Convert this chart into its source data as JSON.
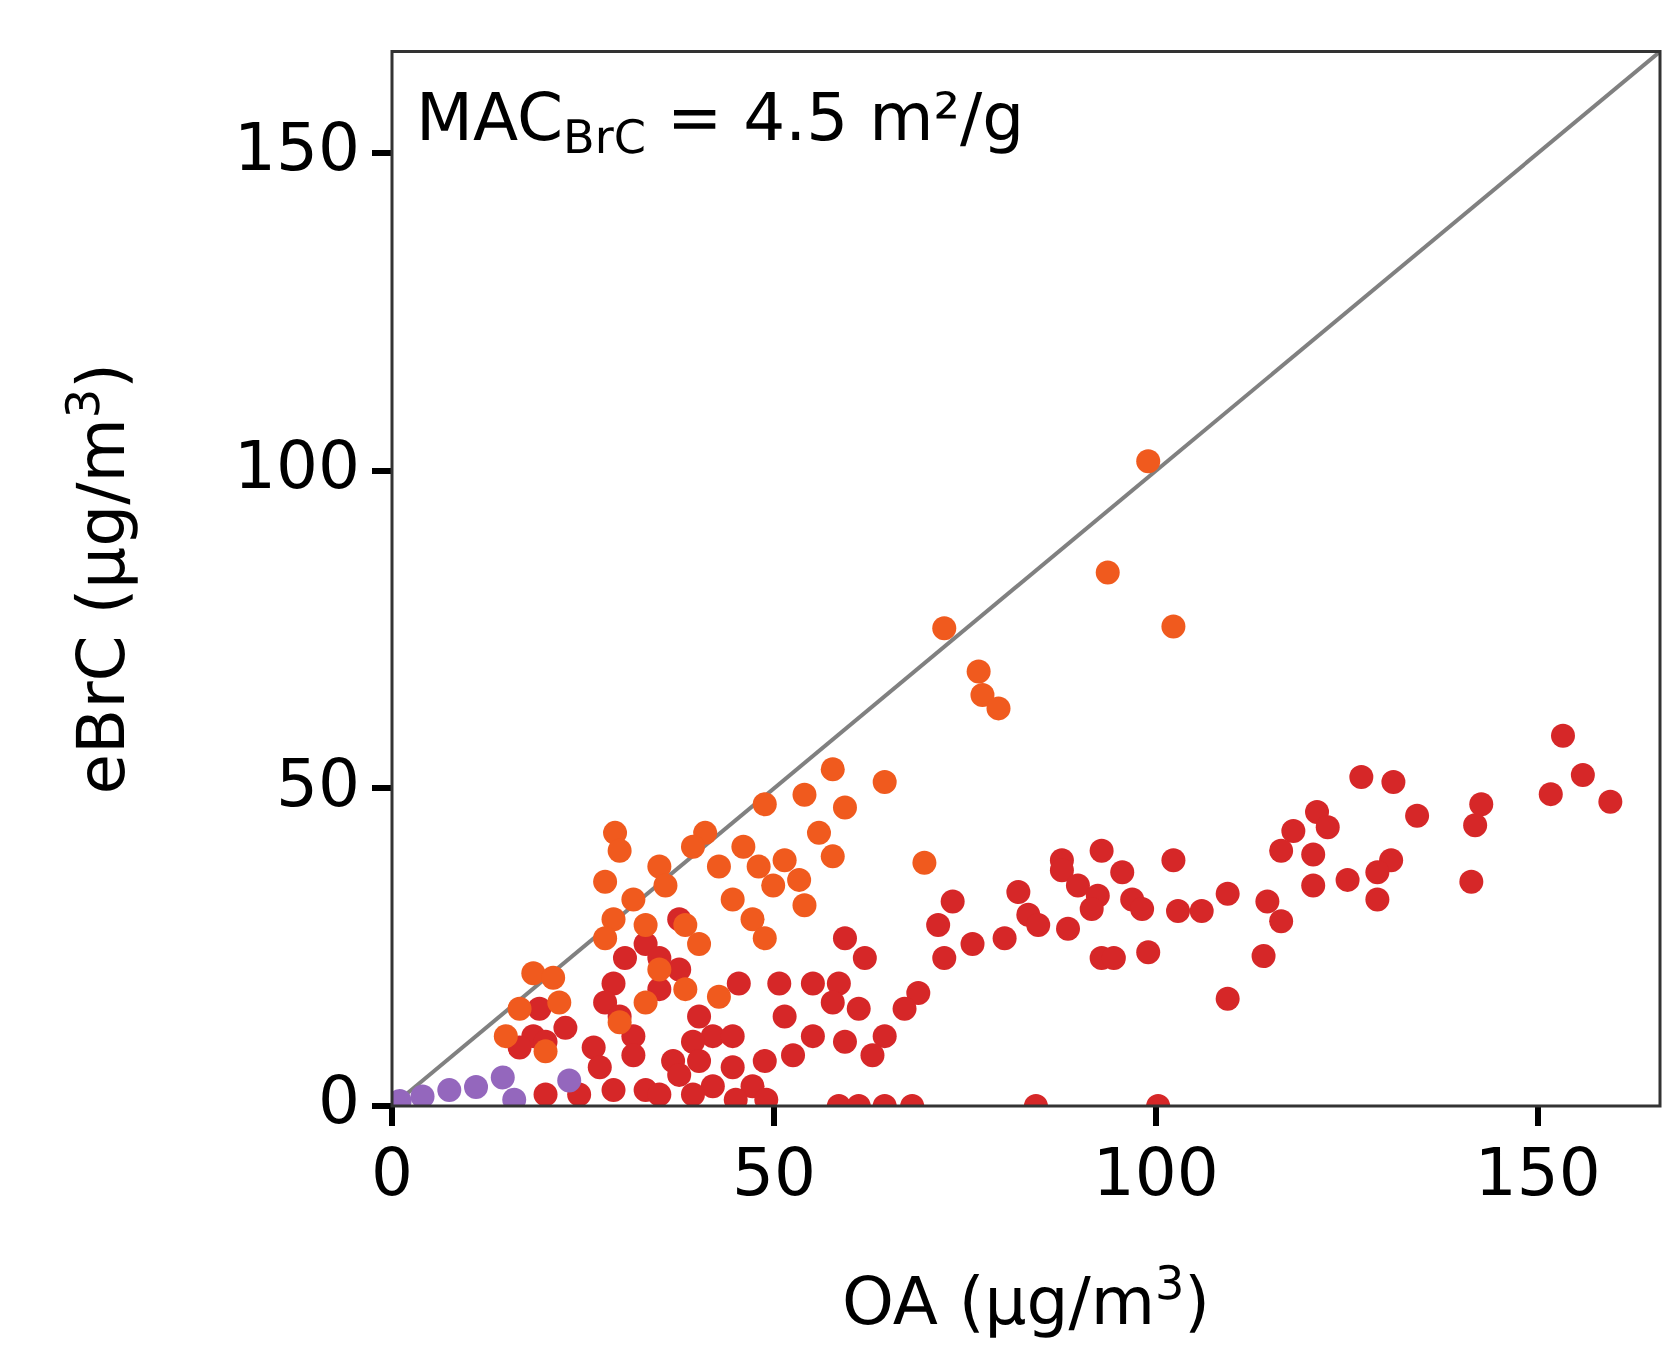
{
  "chart_data": {
    "type": "scatter",
    "xlabel": "OA (µg/m$^{3}$)",
    "ylabel": "eBrC (µg/m$^{3}$)",
    "annotations": [
      "MAC$_{BrC}$ = 4.5 m²/g"
    ],
    "xlim": [
      0,
      166
    ],
    "ylim": [
      0,
      166
    ],
    "xticks": [
      0,
      50,
      100,
      150
    ],
    "yticks": [
      0,
      50,
      100,
      150
    ],
    "grid": false,
    "legend": false,
    "marker": "circle",
    "series": [
      {
        "type": "line",
        "marker": "none",
        "color": "#808080",
        "x": [
          0,
          166
        ],
        "values": [
          0,
          166
        ]
      },
      {
        "color": "#d62728",
        "x": [
          153.3,
          155.9,
          151.7,
          159.5,
          126.9,
          131.1,
          134.2,
          142.6,
          141.8,
          141.3,
          121.1,
          122.5,
          118,
          116.4,
          120.6,
          120.6,
          125.1,
          130.8,
          129,
          129,
          114.6,
          116.4,
          114.1,
          109.4,
          102.3,
          109.4,
          102.9,
          106,
          99,
          92.9,
          94.5,
          87.7,
          87.7,
          92.9,
          95.6,
          89.8,
          92.4,
          91.6,
          96.9,
          98.2,
          82,
          83.3,
          84.6,
          88.5,
          80.2,
          84.3,
          100.3,
          73.4,
          71.5,
          72.3,
          76,
          59.3,
          61.9,
          58.5,
          55.1,
          50.7,
          45.4,
          68.9,
          67.1,
          61.1,
          57.7,
          51.4,
          64.5,
          59.3,
          55.1,
          48.8,
          52.5,
          62.9,
          37.6,
          33.2,
          30.5,
          35,
          37.6,
          29,
          27.9,
          35,
          29.8,
          19.3,
          22.7,
          18.5,
          16.7,
          20.1,
          26.4,
          27.2,
          31.6,
          31.6,
          36.8,
          40.2,
          42,
          39.4,
          44.6,
          40.2,
          37.6,
          44.6,
          47.2,
          42,
          20.1,
          24.5,
          29,
          33.2,
          35,
          39.4,
          58.5,
          61.1,
          64.5,
          68.1,
          45,
          49
        ],
        "values": [
          58.3,
          52.1,
          49.1,
          47.9,
          51.8,
          51,
          45.7,
          47.5,
          44.2,
          35.3,
          46.3,
          43.9,
          43.3,
          40.2,
          39.6,
          34.7,
          35.6,
          38.7,
          36.8,
          32.5,
          32.2,
          29.1,
          23.6,
          16.9,
          38.7,
          33.4,
          30.7,
          30.7,
          24.2,
          23.3,
          23.3,
          38.7,
          37.1,
          40.2,
          36.8,
          34.7,
          33.1,
          31,
          32.5,
          31,
          33.7,
          30.1,
          28.5,
          27.9,
          26.4,
          0,
          0,
          32.2,
          28.5,
          23.3,
          25.5,
          26.4,
          23.3,
          19.3,
          19.3,
          19.3,
          19.3,
          17.8,
          15.3,
          15.3,
          16.3,
          14.1,
          11,
          10.1,
          11,
          7.1,
          8,
          8,
          29.4,
          25.5,
          23.3,
          23.3,
          21.5,
          19.3,
          16.3,
          18.4,
          14.1,
          15.3,
          12.3,
          11,
          9.2,
          10.1,
          9.2,
          6.1,
          11,
          8,
          7.1,
          14.1,
          11,
          10.1,
          11,
          7.1,
          4.9,
          6.1,
          3.1,
          3.1,
          1.8,
          1.8,
          2.5,
          2.5,
          1.8,
          1.8,
          0,
          0,
          0,
          0,
          1,
          1
        ]
      },
      {
        "color": "#f05a1e",
        "x": [
          72.3,
          76.8,
          77.3,
          79.4,
          64.5,
          57.7,
          59.3,
          54,
          48.8,
          55.9,
          57.7,
          69.7,
          41,
          39.4,
          46,
          42.8,
          48,
          51.4,
          53.3,
          49.9,
          54,
          44.6,
          47.2,
          48.8,
          29.2,
          29.8,
          27.9,
          35,
          35.8,
          31.6,
          29,
          33.2,
          38.4,
          40.2,
          27.9,
          35,
          38.4,
          33.2,
          42.8,
          18.5,
          21.1,
          16.7,
          14.9,
          29.8,
          20.1,
          21.9,
          99,
          93.7,
          102.3
        ],
        "values": [
          75.2,
          68.4,
          64.7,
          62.6,
          51,
          53,
          47,
          49,
          47.5,
          43,
          39.3,
          38.3,
          43,
          40.8,
          40.8,
          37.7,
          37.7,
          38.7,
          35.6,
          34.7,
          31.6,
          32.5,
          29.4,
          26.4,
          43,
          40.2,
          35.3,
          37.7,
          34.7,
          32.5,
          29.4,
          28.5,
          28.5,
          25.5,
          26.4,
          21.5,
          18.4,
          16.3,
          17.2,
          20.9,
          20.2,
          15.3,
          11,
          13.2,
          8.6,
          16.3,
          101.5,
          84,
          75.5
        ]
      },
      {
        "color": "#9467bd",
        "x": [
          1,
          4,
          7.5,
          11,
          14.5,
          23.2,
          16
        ],
        "values": [
          0.8,
          1.5,
          2.5,
          3,
          4.5,
          4,
          1
        ]
      }
    ]
  }
}
